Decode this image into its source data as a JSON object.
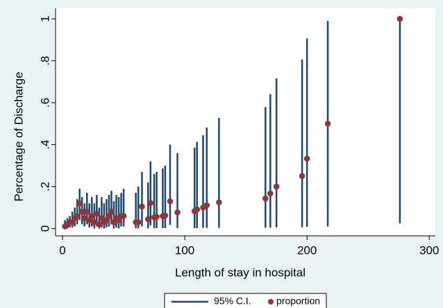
{
  "chart_data": {
    "type": "scatter",
    "xlabel": "Length of stay in hospital",
    "ylabel": "Percentage of Discharge",
    "x": [
      2,
      4,
      6,
      8,
      10,
      12,
      14,
      16,
      18,
      20,
      22,
      24,
      26,
      28,
      30,
      32,
      34,
      36,
      38,
      40,
      42,
      44,
      46,
      48,
      50,
      60,
      62,
      65,
      70,
      72,
      75,
      77,
      82,
      84,
      88,
      94,
      108,
      110,
      115,
      118,
      128,
      166,
      170,
      175,
      196,
      200,
      217,
      276
    ],
    "series": [
      {
        "name": "95% C.I.",
        "color": "#1a476f",
        "low": [
          0,
          0,
          0.005,
          0.005,
          0.01,
          0.02,
          0.04,
          0.02,
          0.01,
          0.02,
          0.005,
          0.01,
          0,
          0.01,
          0,
          0.005,
          0,
          0.005,
          0.01,
          0.02,
          0,
          0.005,
          0,
          0.01,
          0.01,
          0.001,
          0.001,
          0.01,
          0.001,
          0.015,
          0.002,
          0.002,
          0.002,
          0.002,
          0.017,
          0.002,
          0.002,
          0.002,
          0.003,
          0.003,
          0.003,
          0.004,
          0.004,
          0.005,
          0.006,
          0.008,
          0.01,
          0.025
        ],
        "high": [
          0.04,
          0.05,
          0.06,
          0.08,
          0.1,
          0.14,
          0.19,
          0.15,
          0.12,
          0.17,
          0.12,
          0.15,
          0.12,
          0.16,
          0.1,
          0.15,
          0.12,
          0.14,
          0.16,
          0.18,
          0.13,
          0.16,
          0.15,
          0.17,
          0.19,
          0.17,
          0.2,
          0.27,
          0.22,
          0.32,
          0.26,
          0.27,
          0.287,
          0.3,
          0.4,
          0.36,
          0.385,
          0.413,
          0.445,
          0.482,
          0.527,
          0.579,
          0.641,
          0.716,
          0.806,
          0.906,
          0.99,
          1
        ]
      },
      {
        "name": "proportion",
        "color": "#90353b",
        "values": [
          0.01,
          0.02,
          0.03,
          0.03,
          0.05,
          0.06,
          0.12,
          0.08,
          0.05,
          0.08,
          0.04,
          0.06,
          0.03,
          0.07,
          0.02,
          0.05,
          0.03,
          0.04,
          0.06,
          0.08,
          0.03,
          0.05,
          0.04,
          0.06,
          0.06,
          0.03,
          0.03,
          0.105,
          0.045,
          0.122,
          0.053,
          0.056,
          0.059,
          0.0625,
          0.13,
          0.077,
          0.083,
          0.091,
          0.1,
          0.111,
          0.125,
          0.143,
          0.167,
          0.2,
          0.25,
          0.333,
          0.5,
          1
        ]
      }
    ],
    "xlim": [
      -5.7,
      305
    ],
    "ylim": [
      -0.035,
      1.05
    ],
    "xticks": [
      0,
      100,
      200,
      300
    ],
    "yticks": [
      0,
      {
        "value": 0.2,
        "label": ".2"
      },
      {
        "value": 0.4,
        "label": ".4"
      },
      {
        "value": 0.6,
        "label": ".6"
      },
      {
        "value": 0.8,
        "label": ".8"
      },
      1
    ]
  }
}
